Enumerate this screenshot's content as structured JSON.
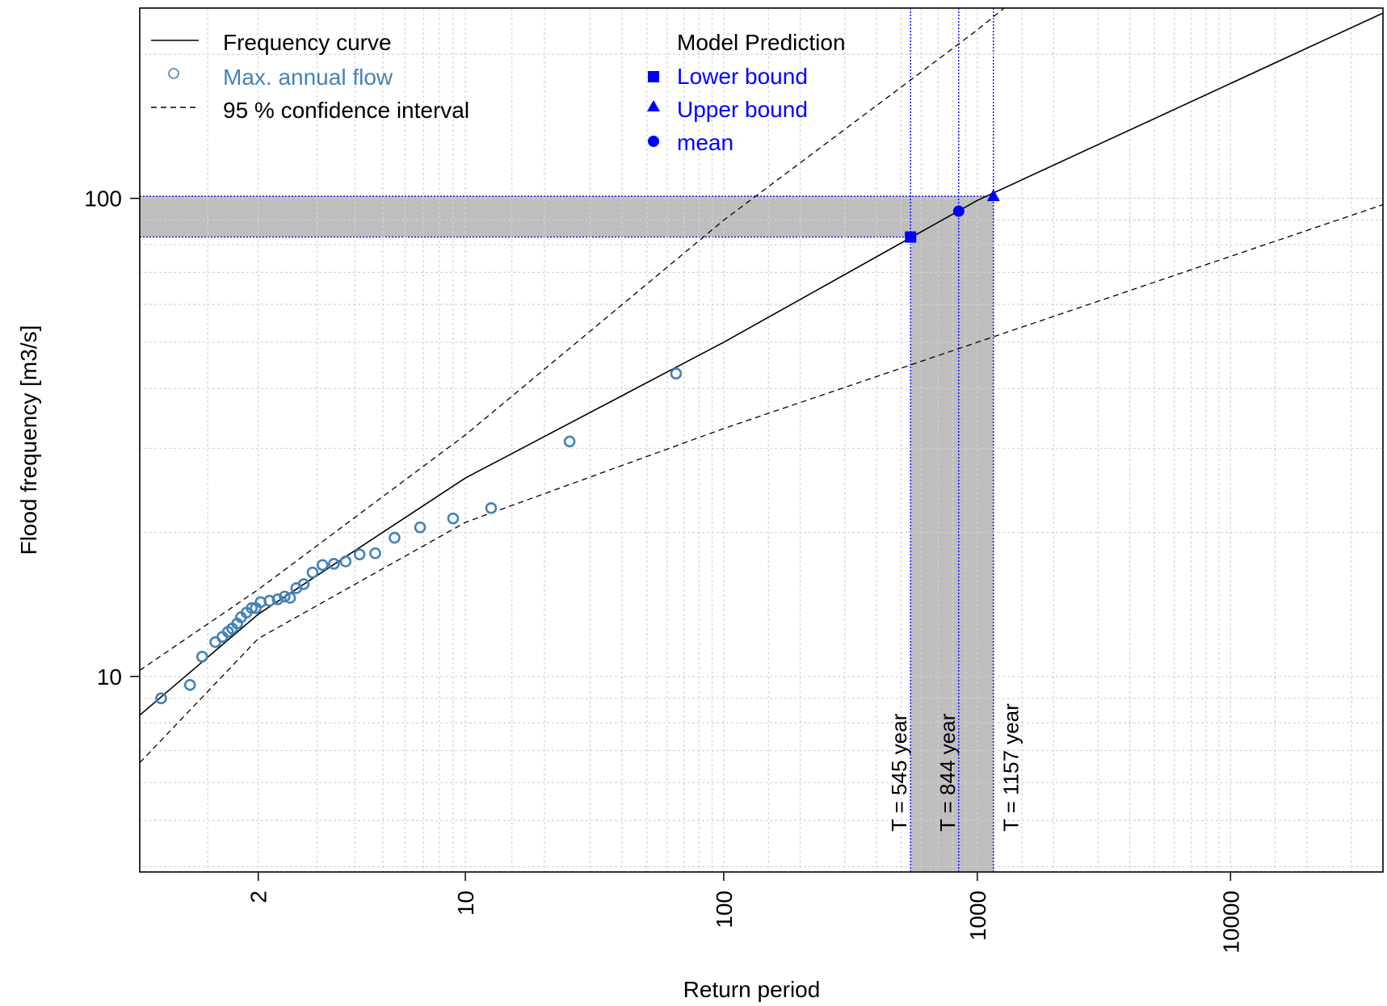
{
  "chart_data": {
    "type": "scatter",
    "xlabel": "Return period",
    "ylabel": "Flood frequency [m3/s]",
    "x_scale": "gumbel reduced variate",
    "y_scale": "log",
    "xlim": [
      1.15,
      40000
    ],
    "ylim": [
      3.9,
      250
    ],
    "grid": true,
    "legend_position": "top",
    "x_tick_labels": [
      "2",
      "10",
      "100",
      "1000",
      "10000"
    ],
    "x_tick_values": [
      2,
      10,
      100,
      1000,
      10000
    ],
    "y_tick_labels": [
      "10",
      "100"
    ],
    "y_tick_values": [
      10,
      100
    ],
    "legend": {
      "items": [
        {
          "label": "Frequency curve",
          "symbol": "solid-line",
          "color": "#000000"
        },
        {
          "label": "Max. annual flow",
          "symbol": "open-circle",
          "color": "#4682b4"
        },
        {
          "label": "95 % confidence interval",
          "symbol": "dashed-line",
          "color": "#000000"
        }
      ],
      "prediction_title": "Model Prediction",
      "prediction_items": [
        {
          "label": "Lower bound",
          "symbol": "square",
          "color": "#0000ff"
        },
        {
          "label": "Upper bound",
          "symbol": "triangle",
          "color": "#0000ff"
        },
        {
          "label": "mean",
          "symbol": "circle",
          "color": "#0000ff"
        }
      ]
    },
    "frequency_curve": {
      "points": [
        [
          1.15,
          8.3
        ],
        [
          2,
          13.5
        ],
        [
          10,
          26
        ],
        [
          100,
          50
        ],
        [
          1000,
          99
        ],
        [
          40000,
          244
        ]
      ]
    },
    "confidence_upper": {
      "points": [
        [
          1.15,
          10.3
        ],
        [
          2,
          15.2
        ],
        [
          10,
          32
        ],
        [
          100,
          90
        ],
        [
          1000,
          225
        ],
        [
          4800,
          445
        ]
      ]
    },
    "confidence_lower": {
      "points": [
        [
          1.15,
          6.6
        ],
        [
          2,
          12.0
        ],
        [
          10,
          21
        ],
        [
          100,
          33
        ],
        [
          1000,
          50
        ],
        [
          40000,
          97
        ]
      ]
    },
    "max_annual_flow": {
      "x": [
        1.23,
        1.38,
        1.46,
        1.56,
        1.62,
        1.67,
        1.71,
        1.76,
        1.8,
        1.86,
        1.92,
        1.97,
        2.03,
        2.15,
        2.27,
        2.38,
        2.47,
        2.58,
        2.72,
        2.9,
        3.12,
        3.4,
        3.72,
        4.15,
        4.7,
        5.5,
        6.8,
        9.0,
        12.5,
        25,
        65
      ],
      "y": [
        9.0,
        9.6,
        11.0,
        11.8,
        12.1,
        12.4,
        12.6,
        12.9,
        13.3,
        13.6,
        13.9,
        13.9,
        14.3,
        14.4,
        14.5,
        14.7,
        14.6,
        15.3,
        15.6,
        16.5,
        17.1,
        17.2,
        17.4,
        18.0,
        18.1,
        19.5,
        20.5,
        21.4,
        22.5,
        31.0,
        43.0
      ]
    },
    "prediction": {
      "band_flow": [
        83,
        101
      ],
      "lower_bound": {
        "x": 545,
        "y": 83
      },
      "mean": {
        "x": 844,
        "y": 94
      },
      "upper_bound": {
        "x": 1157,
        "y": 101
      },
      "labels": [
        "T = 545 year",
        "T = 844 year",
        "T = 1157 year"
      ],
      "line_color": "#0000ff",
      "band_color": "#bebebe"
    }
  }
}
